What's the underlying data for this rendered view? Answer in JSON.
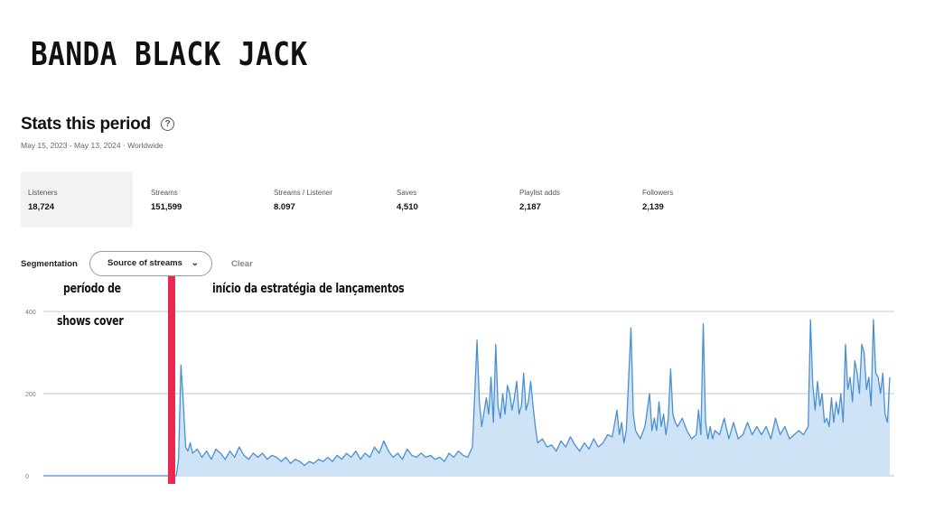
{
  "header": {
    "band_title": "BANDA BLACK JACK"
  },
  "stats": {
    "title": "Stats this period",
    "help_icon": "help-circle-icon",
    "subtitle": "May 15, 2023 - May 13, 2024 · Worldwide",
    "metrics": [
      {
        "label": "Listeners",
        "value": "18,724",
        "active": true
      },
      {
        "label": "Streams",
        "value": "151,599"
      },
      {
        "label": "Streams / Listener",
        "value": "8.097"
      },
      {
        "label": "Saves",
        "value": "4,510"
      },
      {
        "label": "Playlist adds",
        "value": "2,187"
      },
      {
        "label": "Followers",
        "value": "2,139"
      }
    ]
  },
  "segmentation": {
    "label": "Segmentation",
    "dropdown_value": "Source of streams",
    "dropdown_icon": "chevron-down-icon",
    "clear_label": "Clear"
  },
  "annotations": {
    "left_line1": "período de",
    "left_line2": "shows cover",
    "right": "início da estratégia de lançamentos",
    "marker_color": "#e8284e",
    "marker_day": 55
  },
  "chart_data": {
    "type": "area",
    "title": "",
    "xlabel": "",
    "ylabel": "",
    "ylim": [
      0,
      400
    ],
    "yticks": [
      0,
      200,
      400
    ],
    "x_range": [
      0,
      363
    ],
    "grid": true,
    "line_color": "#4a90d0",
    "fill_color": "#cfe3f7",
    "points": [
      [
        0,
        0
      ],
      [
        57,
        0
      ],
      [
        58,
        40
      ],
      [
        59,
        270
      ],
      [
        60,
        180
      ],
      [
        61,
        70
      ],
      [
        62,
        60
      ],
      [
        63,
        80
      ],
      [
        64,
        55
      ],
      [
        66,
        65
      ],
      [
        68,
        45
      ],
      [
        70,
        60
      ],
      [
        72,
        40
      ],
      [
        74,
        65
      ],
      [
        76,
        55
      ],
      [
        78,
        40
      ],
      [
        80,
        60
      ],
      [
        82,
        45
      ],
      [
        84,
        70
      ],
      [
        86,
        50
      ],
      [
        88,
        40
      ],
      [
        90,
        55
      ],
      [
        92,
        45
      ],
      [
        94,
        55
      ],
      [
        96,
        40
      ],
      [
        98,
        50
      ],
      [
        100,
        45
      ],
      [
        102,
        35
      ],
      [
        104,
        45
      ],
      [
        106,
        30
      ],
      [
        108,
        40
      ],
      [
        110,
        35
      ],
      [
        112,
        25
      ],
      [
        114,
        35
      ],
      [
        116,
        30
      ],
      [
        118,
        40
      ],
      [
        120,
        35
      ],
      [
        122,
        45
      ],
      [
        124,
        35
      ],
      [
        126,
        50
      ],
      [
        128,
        40
      ],
      [
        130,
        55
      ],
      [
        132,
        45
      ],
      [
        134,
        60
      ],
      [
        136,
        40
      ],
      [
        138,
        55
      ],
      [
        140,
        45
      ],
      [
        142,
        70
      ],
      [
        144,
        55
      ],
      [
        146,
        85
      ],
      [
        148,
        60
      ],
      [
        150,
        45
      ],
      [
        152,
        55
      ],
      [
        154,
        40
      ],
      [
        156,
        65
      ],
      [
        158,
        50
      ],
      [
        160,
        45
      ],
      [
        162,
        55
      ],
      [
        164,
        45
      ],
      [
        166,
        50
      ],
      [
        168,
        40
      ],
      [
        170,
        45
      ],
      [
        172,
        35
      ],
      [
        174,
        55
      ],
      [
        176,
        45
      ],
      [
        178,
        60
      ],
      [
        180,
        50
      ],
      [
        182,
        45
      ],
      [
        184,
        70
      ],
      [
        186,
        330
      ],
      [
        187,
        180
      ],
      [
        188,
        120
      ],
      [
        190,
        190
      ],
      [
        191,
        150
      ],
      [
        192,
        240
      ],
      [
        193,
        130
      ],
      [
        194,
        320
      ],
      [
        195,
        170
      ],
      [
        196,
        140
      ],
      [
        197,
        200
      ],
      [
        198,
        150
      ],
      [
        199,
        220
      ],
      [
        200,
        200
      ],
      [
        201,
        160
      ],
      [
        202,
        190
      ],
      [
        203,
        230
      ],
      [
        204,
        150
      ],
      [
        205,
        170
      ],
      [
        206,
        250
      ],
      [
        207,
        160
      ],
      [
        208,
        180
      ],
      [
        209,
        230
      ],
      [
        210,
        170
      ],
      [
        211,
        120
      ],
      [
        212,
        80
      ],
      [
        214,
        90
      ],
      [
        216,
        70
      ],
      [
        218,
        75
      ],
      [
        220,
        60
      ],
      [
        222,
        85
      ],
      [
        224,
        70
      ],
      [
        226,
        95
      ],
      [
        228,
        75
      ],
      [
        230,
        60
      ],
      [
        232,
        80
      ],
      [
        234,
        65
      ],
      [
        236,
        90
      ],
      [
        238,
        70
      ],
      [
        240,
        80
      ],
      [
        242,
        100
      ],
      [
        244,
        95
      ],
      [
        246,
        160
      ],
      [
        247,
        100
      ],
      [
        248,
        130
      ],
      [
        249,
        80
      ],
      [
        250,
        110
      ],
      [
        252,
        360
      ],
      [
        253,
        150
      ],
      [
        254,
        110
      ],
      [
        256,
        90
      ],
      [
        258,
        120
      ],
      [
        260,
        200
      ],
      [
        261,
        110
      ],
      [
        262,
        140
      ],
      [
        263,
        110
      ],
      [
        264,
        180
      ],
      [
        265,
        120
      ],
      [
        266,
        150
      ],
      [
        267,
        100
      ],
      [
        268,
        140
      ],
      [
        269,
        260
      ],
      [
        270,
        150
      ],
      [
        271,
        130
      ],
      [
        272,
        120
      ],
      [
        274,
        140
      ],
      [
        276,
        110
      ],
      [
        278,
        90
      ],
      [
        280,
        100
      ],
      [
        281,
        160
      ],
      [
        282,
        100
      ],
      [
        283,
        370
      ],
      [
        284,
        130
      ],
      [
        285,
        90
      ],
      [
        286,
        120
      ],
      [
        287,
        90
      ],
      [
        288,
        110
      ],
      [
        290,
        100
      ],
      [
        292,
        140
      ],
      [
        294,
        90
      ],
      [
        296,
        130
      ],
      [
        298,
        90
      ],
      [
        300,
        100
      ],
      [
        302,
        130
      ],
      [
        304,
        100
      ],
      [
        306,
        120
      ],
      [
        308,
        100
      ],
      [
        310,
        120
      ],
      [
        312,
        90
      ],
      [
        314,
        140
      ],
      [
        316,
        100
      ],
      [
        318,
        120
      ],
      [
        320,
        90
      ],
      [
        322,
        100
      ],
      [
        324,
        110
      ],
      [
        326,
        100
      ],
      [
        328,
        120
      ],
      [
        329,
        380
      ],
      [
        330,
        220
      ],
      [
        331,
        160
      ],
      [
        332,
        230
      ],
      [
        333,
        170
      ],
      [
        334,
        200
      ],
      [
        335,
        130
      ],
      [
        336,
        140
      ],
      [
        337,
        120
      ],
      [
        338,
        190
      ],
      [
        339,
        130
      ],
      [
        340,
        180
      ],
      [
        341,
        150
      ],
      [
        342,
        200
      ],
      [
        343,
        130
      ],
      [
        344,
        320
      ],
      [
        345,
        210
      ],
      [
        346,
        240
      ],
      [
        347,
        180
      ],
      [
        348,
        280
      ],
      [
        349,
        250
      ],
      [
        350,
        200
      ],
      [
        351,
        320
      ],
      [
        352,
        300
      ],
      [
        353,
        210
      ],
      [
        354,
        240
      ],
      [
        355,
        170
      ],
      [
        356,
        380
      ],
      [
        357,
        250
      ],
      [
        358,
        240
      ],
      [
        359,
        200
      ],
      [
        360,
        250
      ],
      [
        361,
        150
      ],
      [
        362,
        130
      ],
      [
        363,
        240
      ]
    ]
  }
}
